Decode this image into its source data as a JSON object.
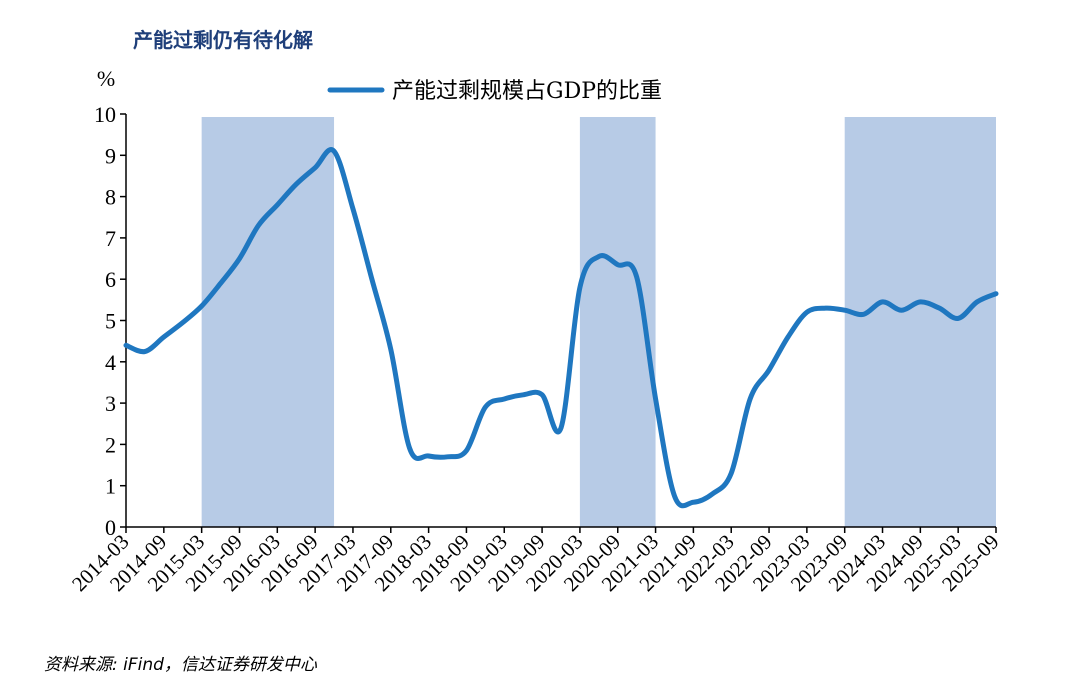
{
  "title": "产能过剩仍有待化解",
  "source": "资料来源: iFind，信达证券研发中心",
  "chart_data": {
    "type": "line",
    "unit_label": "%",
    "ylim": [
      0,
      10
    ],
    "yticks": [
      0,
      1,
      2,
      3,
      4,
      5,
      6,
      7,
      8,
      9,
      10
    ],
    "xticks": [
      "2014-03",
      "2014-09",
      "2015-03",
      "2015-09",
      "2016-03",
      "2016-09",
      "2017-03",
      "2017-09",
      "2018-03",
      "2018-09",
      "2019-03",
      "2019-09",
      "2020-03",
      "2020-09",
      "2021-03",
      "2021-09",
      "2022-03",
      "2022-09",
      "2023-03",
      "2023-09",
      "2024-03",
      "2024-09",
      "2025-03",
      "2025-09"
    ],
    "legend": {
      "position": "top-center"
    },
    "grid": false,
    "series": [
      {
        "name": "产能过剩规模占GDP的比重",
        "color": "#1f77c0",
        "points": [
          [
            "2014-03",
            4.4
          ],
          [
            "2014-06",
            4.25
          ],
          [
            "2014-09",
            4.6
          ],
          [
            "2014-12",
            4.95
          ],
          [
            "2015-03",
            5.35
          ],
          [
            "2015-06",
            5.9
          ],
          [
            "2015-09",
            6.5
          ],
          [
            "2015-12",
            7.3
          ],
          [
            "2016-03",
            7.8
          ],
          [
            "2016-06",
            8.3
          ],
          [
            "2016-09",
            8.7
          ],
          [
            "2016-12",
            9.1
          ],
          [
            "2017-03",
            7.7
          ],
          [
            "2017-06",
            6.0
          ],
          [
            "2017-09",
            4.3
          ],
          [
            "2017-12",
            1.9
          ],
          [
            "2018-03",
            1.72
          ],
          [
            "2018-06",
            1.7
          ],
          [
            "2018-09",
            1.85
          ],
          [
            "2018-12",
            2.9
          ],
          [
            "2019-03",
            3.1
          ],
          [
            "2019-06",
            3.2
          ],
          [
            "2019-09",
            3.2
          ],
          [
            "2019-12",
            2.4
          ],
          [
            "2020-03",
            5.8
          ],
          [
            "2020-06",
            6.55
          ],
          [
            "2020-09",
            6.35
          ],
          [
            "2020-12",
            6.05
          ],
          [
            "2021-03",
            3.1
          ],
          [
            "2021-06",
            0.75
          ],
          [
            "2021-09",
            0.6
          ],
          [
            "2021-12",
            0.8
          ],
          [
            "2022-03",
            1.3
          ],
          [
            "2022-06",
            3.1
          ],
          [
            "2022-09",
            3.8
          ],
          [
            "2022-12",
            4.6
          ],
          [
            "2023-03",
            5.2
          ],
          [
            "2023-06",
            5.3
          ],
          [
            "2023-09",
            5.25
          ],
          [
            "2023-12",
            5.15
          ],
          [
            "2024-03",
            5.45
          ],
          [
            "2024-06",
            5.25
          ],
          [
            "2024-09",
            5.45
          ],
          [
            "2024-12",
            5.3
          ],
          [
            "2025-03",
            5.05
          ],
          [
            "2025-06",
            5.45
          ],
          [
            "2025-09",
            5.65
          ]
        ]
      }
    ],
    "shaded_periods": [
      {
        "start": "2015-03",
        "end": "2016-12"
      },
      {
        "start": "2020-03",
        "end": "2021-03"
      },
      {
        "start": "2023-09",
        "end": "2025-09"
      }
    ],
    "shade_color": "#b7cbe6"
  }
}
